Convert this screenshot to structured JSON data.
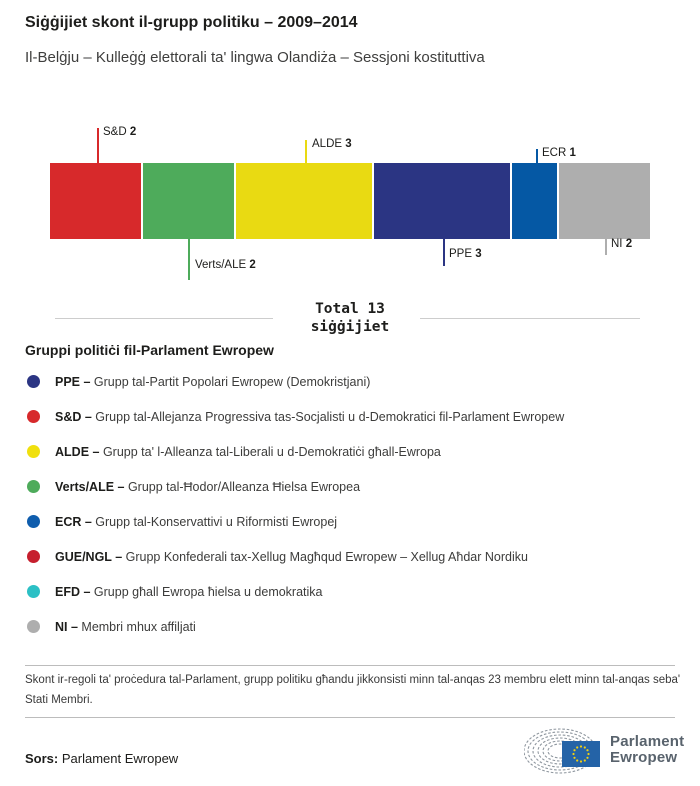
{
  "header": {
    "title": "Siġġijiet skont il-grupp politiku – 2009–2014",
    "subtitle": "Il-Belġju – Kulleġġ elettorali ta' lingwa Olandiża – Sessjoni kostituttiva"
  },
  "chart_data": {
    "type": "bar",
    "subtype": "stacked-horizontal-single-bar",
    "title": "Siġġijiet skont il-grupp politiku – 2009–2014",
    "total_seats": 13,
    "total_label_line1": "Total 13",
    "total_label_line2": "siġġijiet",
    "categories": [
      "S&D",
      "Verts/ALE",
      "ALDE",
      "PPE",
      "ECR",
      "NI"
    ],
    "values": [
      2,
      2,
      3,
      3,
      1,
      2
    ],
    "segments": [
      {
        "group": "S&D",
        "seats": 2,
        "color": "#d7292b",
        "label_position": "above"
      },
      {
        "group": "Verts/ALE",
        "seats": 2,
        "color": "#4eab5b",
        "label_position": "below"
      },
      {
        "group": "ALDE",
        "seats": 3,
        "color": "#e9da12",
        "label_position": "above"
      },
      {
        "group": "PPE",
        "seats": 3,
        "color": "#2b3583",
        "label_position": "below"
      },
      {
        "group": "ECR",
        "seats": 1,
        "color": "#0558a4",
        "label_position": "above"
      },
      {
        "group": "NI",
        "seats": 2,
        "color": "#aeaeae",
        "label_position": "below"
      }
    ]
  },
  "legend": {
    "heading": "Gruppi politiċi fil-Parlament Ewropew",
    "items": [
      {
        "abbr": "PPE –",
        "desc": "Grupp tal-Partit Popolari Ewropew (Demokristjani)",
        "color": "#2b3583"
      },
      {
        "abbr": "S&D –",
        "desc": "Grupp tal-Allejanza Progressiva tas-Socjalisti u d-Demokratici fil-Parlament Ewropew",
        "color": "#d7292b"
      },
      {
        "abbr": "ALDE –",
        "desc": "Grupp ta' l-Alleanza tal-Liberali u d-Demokratiċi għall-Ewropa",
        "color": "#f0e00e"
      },
      {
        "abbr": "Verts/ALE –",
        "desc": "Grupp tal-Ħodor/Alleanza Ħielsa Ewropea",
        "color": "#4eab5b"
      },
      {
        "abbr": "ECR –",
        "desc": "Grupp tal-Konservattivi u Riformisti Ewropej",
        "color": "#0f5dad"
      },
      {
        "abbr": "GUE/NGL –",
        "desc": "Grupp Konfederali tax-Xellug Magħqud Ewropew – Xellug Aħdar Nordiku",
        "color": "#c61f2e"
      },
      {
        "abbr": "EFD –",
        "desc": "Grupp għall Ewropa ħielsa u demokratika",
        "color": "#2cc0c5"
      },
      {
        "abbr": "NI –",
        "desc": "Membri mhux affiljati",
        "color": "#aeaeae"
      }
    ]
  },
  "footer": {
    "note": "Skont ir-regoli ta' proċedura tal-Parlament, grupp politiku għandu jikkonsisti minn tal-anqas 23 membru elett minn tal-anqas seba' Stati Membri.",
    "source_label": "Sors:",
    "source_value": "Parlament Ewropew",
    "logo_line1": "Parlament",
    "logo_line2": "Ewropew",
    "logo_colors": {
      "flag_blue": "#2463a7",
      "star_yellow": "#f3d010",
      "arc_gray": "#8f979f"
    }
  }
}
